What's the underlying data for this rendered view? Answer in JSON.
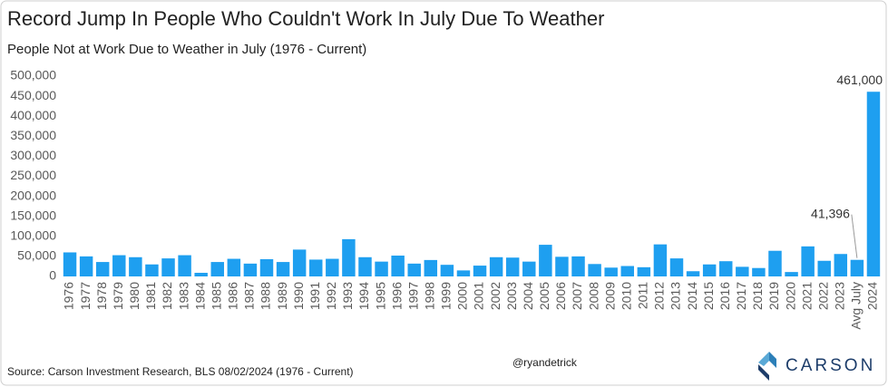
{
  "chart_data": {
    "type": "bar",
    "title": "Record Jump In People Who Couldn't Work In July Due To Weather",
    "subtitle": "People Not at Work Due to Weather in July (1976 - Current)",
    "source": "Source: Carson Investment Research, BLS 08/02/2024 (1976 - Current)",
    "handle": "@ryandetrick",
    "brand": "CARSON",
    "categories": [
      "1976",
      "1977",
      "1978",
      "1979",
      "1980",
      "1981",
      "1982",
      "1983",
      "1984",
      "1985",
      "1986",
      "1987",
      "1988",
      "1989",
      "1990",
      "1991",
      "1992",
      "1993",
      "1994",
      "1995",
      "1996",
      "1997",
      "1998",
      "1999",
      "2000",
      "2001",
      "2002",
      "2003",
      "2004",
      "2005",
      "2006",
      "2007",
      "2008",
      "2009",
      "2010",
      "2011",
      "2012",
      "2013",
      "2014",
      "2015",
      "2016",
      "2017",
      "2018",
      "2019",
      "2020",
      "2021",
      "2022",
      "2023",
      "Avg July",
      "2024"
    ],
    "values": [
      60000,
      50000,
      36000,
      53000,
      48000,
      30000,
      45000,
      53000,
      9000,
      36000,
      44000,
      32000,
      43000,
      36000,
      67000,
      42000,
      44000,
      93000,
      48000,
      37000,
      52000,
      32000,
      41000,
      29000,
      15000,
      27000,
      48000,
      47000,
      37000,
      79000,
      49000,
      50000,
      31000,
      22000,
      26000,
      23000,
      80000,
      45000,
      13000,
      30000,
      38000,
      24000,
      21000,
      64000,
      11000,
      75000,
      39000,
      56000,
      41396,
      461000
    ],
    "value_labels": [
      null,
      null,
      null,
      null,
      null,
      null,
      null,
      null,
      null,
      null,
      null,
      null,
      null,
      null,
      null,
      null,
      null,
      null,
      null,
      null,
      null,
      null,
      null,
      null,
      null,
      null,
      null,
      null,
      null,
      null,
      null,
      null,
      null,
      null,
      null,
      null,
      null,
      null,
      null,
      null,
      null,
      null,
      null,
      null,
      null,
      null,
      null,
      null,
      "41,396",
      "461,000"
    ],
    "color": "#1e9ff0",
    "ylim": [
      0,
      500000
    ],
    "yticks": [
      0,
      {
        "value": 50000,
        "label": "50,000"
      },
      {
        "value": 100000,
        "label": "100,000"
      },
      {
        "value": 150000,
        "label": "150,000"
      },
      {
        "value": 200000,
        "label": "200,000"
      },
      {
        "value": 250000,
        "label": "250,000"
      },
      {
        "value": 300000,
        "label": "300,000"
      },
      {
        "value": 350000,
        "label": "350,000"
      },
      {
        "value": 400000,
        "label": "400,000"
      },
      {
        "value": 450000,
        "label": "450,000"
      },
      {
        "value": 500000,
        "label": "500,000"
      }
    ],
    "grid": false
  }
}
